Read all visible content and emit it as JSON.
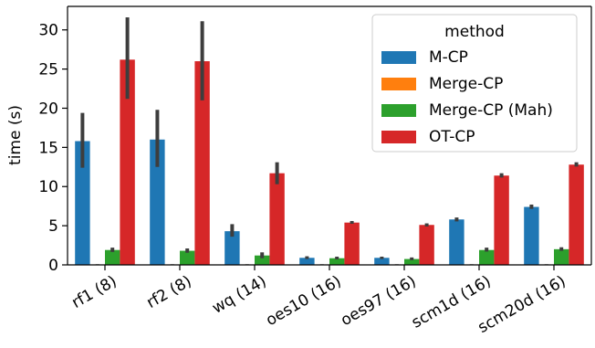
{
  "chart_data": {
    "type": "bar",
    "title": "",
    "xlabel": "",
    "ylabel": "time (s)",
    "ylim": [
      0,
      33
    ],
    "yticks": [
      0,
      5,
      10,
      15,
      20,
      25,
      30
    ],
    "categories": [
      "rf1 (8)",
      "rf2 (8)",
      "wq (14)",
      "oes10 (16)",
      "oes97 (16)",
      "scm1d (16)",
      "scm20d (16)"
    ],
    "series": [
      {
        "name": "M-CP",
        "color": "#1f77b4",
        "values": [
          15.8,
          16.0,
          4.3,
          0.9,
          0.9,
          5.8,
          7.4
        ],
        "err_low": [
          12.4,
          12.5,
          3.6,
          0.75,
          0.75,
          5.55,
          7.15
        ],
        "err_high": [
          19.4,
          19.8,
          5.2,
          1.1,
          1.05,
          6.05,
          7.7
        ]
      },
      {
        "name": "Merge-CP",
        "color": "#ff7f0e",
        "values": [
          0.05,
          0.05,
          0.05,
          0.05,
          0.05,
          0.05,
          0.05
        ],
        "err_low": [
          0.03,
          0.03,
          0.03,
          0.03,
          0.03,
          0.03,
          0.03
        ],
        "err_high": [
          0.08,
          0.08,
          0.08,
          0.08,
          0.08,
          0.08,
          0.08
        ]
      },
      {
        "name": "Merge-CP (Mah)",
        "color": "#2ca02c",
        "values": [
          1.9,
          1.8,
          1.2,
          0.85,
          0.75,
          1.9,
          2.0
        ],
        "err_low": [
          1.65,
          1.55,
          0.85,
          0.7,
          0.6,
          1.7,
          1.8
        ],
        "err_high": [
          2.2,
          2.1,
          1.6,
          1.05,
          0.95,
          2.2,
          2.25
        ]
      },
      {
        "name": "OT-CP",
        "color": "#d62728",
        "values": [
          26.2,
          26.0,
          11.7,
          5.4,
          5.1,
          11.4,
          12.8
        ],
        "err_low": [
          21.2,
          21.0,
          10.3,
          5.25,
          4.9,
          11.15,
          12.55
        ],
        "err_high": [
          31.6,
          31.1,
          13.1,
          5.6,
          5.3,
          11.7,
          13.1
        ]
      }
    ],
    "legend": {
      "title": "method",
      "placement": "top-right"
    },
    "grid": false
  }
}
